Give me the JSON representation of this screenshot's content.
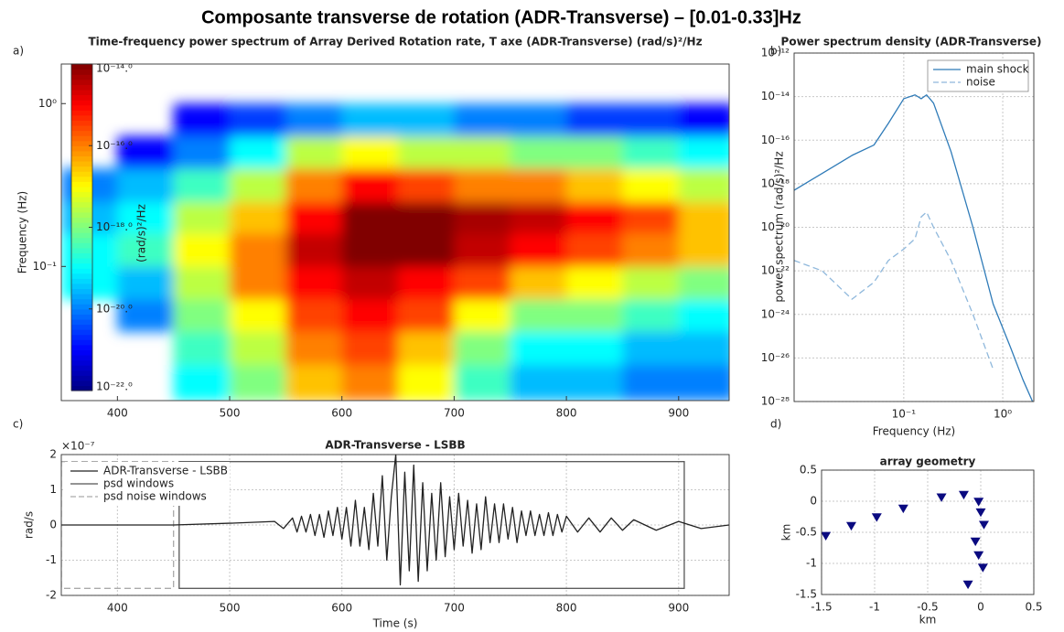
{
  "title": "Composante transverse de rotation (ADR-Transverse) – [0.01-0.33]Hz",
  "chart_data": [
    {
      "type": "heatmap",
      "panel_label": "a)",
      "title": "Time-frequency power spectrum of Array Derived Rotation rate, T axe (ADR-Transverse) (rad/s)²/Hz",
      "ylabel": "Frequency (Hz)",
      "x_bins": [
        350,
        400,
        450,
        500,
        550,
        600,
        650,
        700,
        750,
        800,
        850,
        900,
        950
      ],
      "y_bins": [
        0.015,
        0.025,
        0.04,
        0.063,
        0.1,
        0.16,
        0.25,
        0.4,
        0.63,
        1.0,
        1.75
      ],
      "values": [
        [
          null,
          null,
          1e-19,
          1e-18,
          3e-17,
          1e-16,
          1e-17,
          3e-19,
          3e-20,
          3e-20,
          1e-20,
          1e-20
        ],
        [
          null,
          null,
          3e-19,
          3e-18,
          1e-16,
          3e-16,
          3e-17,
          1e-18,
          1e-19,
          1e-19,
          3e-20,
          3e-20
        ],
        [
          null,
          1e-20,
          1e-18,
          1e-17,
          3e-16,
          1e-15,
          3e-16,
          1e-17,
          1e-18,
          1e-18,
          3e-19,
          1e-19
        ],
        [
          1e-19,
          3e-20,
          3e-18,
          1e-16,
          1e-15,
          3e-15,
          1e-15,
          3e-16,
          3e-17,
          1e-17,
          3e-18,
          1e-18
        ],
        [
          1e-19,
          3e-19,
          1e-17,
          1e-16,
          3e-15,
          1e-14,
          1e-14,
          3e-15,
          1e-15,
          3e-16,
          1e-16,
          3e-17
        ],
        [
          3e-20,
          1e-19,
          3e-18,
          3e-17,
          1e-15,
          1e-14,
          1e-14,
          5e-15,
          3e-15,
          1e-15,
          3e-16,
          3e-17
        ],
        [
          1e-20,
          3e-20,
          3e-19,
          3e-18,
          1e-16,
          1e-15,
          3e-16,
          1e-16,
          1e-16,
          3e-17,
          1e-17,
          3e-18
        ],
        [
          null,
          1e-21,
          1e-20,
          1e-19,
          3e-18,
          1e-17,
          3e-18,
          3e-18,
          1e-18,
          1e-18,
          3e-19,
          1e-19
        ],
        [
          null,
          null,
          1e-21,
          3e-21,
          1e-20,
          3e-20,
          3e-20,
          1e-20,
          1e-20,
          3e-21,
          3e-21,
          1e-21
        ],
        [
          null,
          null,
          null,
          null,
          null,
          null,
          null,
          null,
          null,
          null,
          null,
          null
        ]
      ],
      "xlim": [
        350,
        945
      ],
      "xticks": [
        400,
        500,
        600,
        700,
        800,
        900
      ],
      "ylim": [
        0.015,
        1.75
      ],
      "log_y": true,
      "yticks": [
        {
          "value": 0.1,
          "label": "10⁻¹"
        },
        {
          "value": 1,
          "label": "10⁰"
        }
      ],
      "colormap": "jet",
      "colorbar": {
        "label": "(rad/s)²/Hz",
        "lim": [
          1e-22,
          1e-14
        ],
        "log": true,
        "ticks": [
          {
            "value": 1e-14,
            "label": "10⁻¹⁴.⁰"
          },
          {
            "value": 1e-16,
            "label": "10⁻¹⁶.⁰"
          },
          {
            "value": 1e-18,
            "label": "10⁻¹⁸.⁰"
          },
          {
            "value": 1e-20,
            "label": "10⁻²⁰.⁰"
          },
          {
            "value": 1e-22,
            "label": "10⁻²².⁰"
          }
        ]
      },
      "grid": false
    },
    {
      "type": "line",
      "panel_label": "b)",
      "title": "Power spectrum density (ADR-Transverse)",
      "xlabel": "Frequency (Hz)",
      "ylabel": "power spectrum (rad/s)²/Hz",
      "x": [
        0.0078,
        0.015,
        0.03,
        0.05,
        0.07,
        0.1,
        0.13,
        0.15,
        0.17,
        0.2,
        0.3,
        0.5,
        0.8,
        1.2,
        1.6,
        2.0
      ],
      "series": [
        {
          "name": "main shock",
          "color": "#2f7bb8",
          "line_style": "solid",
          "values": [
            5e-19,
            3e-18,
            2e-17,
            6e-17,
            6e-16,
            8e-15,
            1.2e-14,
            8e-15,
            1.2e-14,
            5e-15,
            3e-17,
            1e-20,
            3e-24,
            3e-26,
            1e-27,
            1e-28
          ]
        },
        {
          "name": "noise",
          "color": "#8fb8dc",
          "line_style": "dashed",
          "values": [
            3e-22,
            1e-22,
            5e-24,
            3e-23,
            3e-22,
            1e-21,
            3e-21,
            3e-20,
            5e-20,
            1e-20,
            3e-22,
            1e-24,
            3e-27,
            null,
            null,
            null
          ]
        }
      ],
      "xlim": [
        0.0078,
        2.06
      ],
      "log_x": true,
      "xticks": [
        {
          "value": 0.1,
          "label": "10⁻¹"
        },
        {
          "value": 1,
          "label": "10⁰"
        }
      ],
      "ylim": [
        1e-28,
        1e-12
      ],
      "log_y": true,
      "yticks": [
        {
          "value": 1e-12,
          "label": "10⁻¹²"
        },
        {
          "value": 1e-14,
          "label": "10⁻¹⁴"
        },
        {
          "value": 1e-16,
          "label": "10⁻¹⁶"
        },
        {
          "value": 1e-18,
          "label": "10⁻¹⁸"
        },
        {
          "value": 1e-20,
          "label": "10⁻²⁰"
        },
        {
          "value": 1e-22,
          "label": "10⁻²²"
        },
        {
          "value": 1e-24,
          "label": "10⁻²⁴"
        },
        {
          "value": 1e-26,
          "label": "10⁻²⁶"
        },
        {
          "value": 1e-28,
          "label": "10⁻²⁸"
        }
      ],
      "grid": true,
      "legend": "upper right"
    },
    {
      "type": "line",
      "panel_label": "c)",
      "title": "ADR-Transverse - LSBB",
      "xlabel": "Time (s)",
      "ylabel": "rad/s",
      "y_multiplier": "×10⁻⁷",
      "x": [
        350,
        450,
        500,
        540,
        548,
        556,
        560,
        564,
        568,
        572,
        576,
        580,
        584,
        588,
        592,
        596,
        600,
        604,
        608,
        612,
        616,
        620,
        624,
        628,
        632,
        636,
        640,
        644,
        648,
        652,
        656,
        660,
        664,
        668,
        672,
        676,
        680,
        684,
        688,
        692,
        696,
        700,
        704,
        708,
        712,
        716,
        720,
        724,
        728,
        732,
        736,
        740,
        744,
        748,
        752,
        756,
        760,
        764,
        768,
        772,
        776,
        780,
        784,
        788,
        792,
        796,
        800,
        810,
        820,
        830,
        840,
        850,
        860,
        880,
        900,
        920,
        945
      ],
      "series": [
        {
          "name": "ADR-Transverse - LSBB",
          "color": "#222222",
          "line_style": "solid",
          "values": [
            0,
            0,
            0.05,
            0.1,
            -0.1,
            0.2,
            -0.2,
            0.25,
            -0.2,
            0.3,
            -0.3,
            0.3,
            -0.35,
            0.4,
            -0.3,
            0.5,
            -0.4,
            0.5,
            -0.6,
            0.7,
            -0.6,
            0.5,
            -0.7,
            0.9,
            -0.6,
            1.4,
            -1.0,
            0.8,
            2.0,
            -1.7,
            1.5,
            -1.3,
            1.7,
            -1.6,
            1.2,
            -1.3,
            0.9,
            -1.0,
            1.2,
            -0.9,
            0.8,
            -0.7,
            0.9,
            -0.6,
            0.7,
            -0.8,
            0.6,
            -0.7,
            0.8,
            -0.5,
            0.6,
            -0.5,
            0.6,
            -0.4,
            0.5,
            -0.5,
            0.4,
            -0.3,
            0.4,
            -0.3,
            0.3,
            -0.3,
            0.35,
            -0.3,
            0.3,
            -0.2,
            0.25,
            -0.2,
            0.2,
            -0.2,
            0.2,
            -0.15,
            0.15,
            -0.15,
            0.1,
            -0.1,
            0
          ]
        }
      ],
      "windows": [
        {
          "name": "psd windows",
          "color": "#555555",
          "line_style": "solid",
          "x": [
            455,
            905
          ],
          "y": [
            -1.8,
            1.8
          ]
        },
        {
          "name": "psd noise windows",
          "color": "#aaaaaa",
          "line_style": "dashed",
          "x": [
            350,
            450
          ],
          "y": [
            -1.8,
            1.8
          ]
        }
      ],
      "xlim": [
        350,
        945
      ],
      "xticks": [
        400,
        500,
        600,
        700,
        800,
        900
      ],
      "ylim": [
        -2,
        2
      ],
      "yticks": [
        -2,
        -1,
        0,
        1,
        2
      ],
      "grid": true,
      "legend": "upper left"
    },
    {
      "type": "scatter",
      "panel_label": "d)",
      "title": "array geometry",
      "xlabel": "km",
      "ylabel": "km",
      "x": [
        -1.46,
        -1.22,
        -0.98,
        -0.73,
        -0.37,
        -0.16,
        -0.02,
        0.0,
        0.03,
        -0.05,
        -0.02,
        0.02,
        -0.12
      ],
      "values": [
        -0.56,
        -0.4,
        -0.26,
        -0.12,
        0.06,
        0.1,
        -0.01,
        -0.18,
        -0.38,
        -0.65,
        -0.87,
        -1.07,
        -1.34
      ],
      "color": "#0a0a80",
      "marker": "triangle-down",
      "xlim": [
        -1.5,
        0.5
      ],
      "xticks": [
        -1.5,
        -1,
        -0.5,
        0,
        0.5
      ],
      "ylim": [
        -1.5,
        0.5
      ],
      "yticks": [
        -1.5,
        -1,
        -0.5,
        0,
        0.5
      ],
      "grid": true
    }
  ]
}
